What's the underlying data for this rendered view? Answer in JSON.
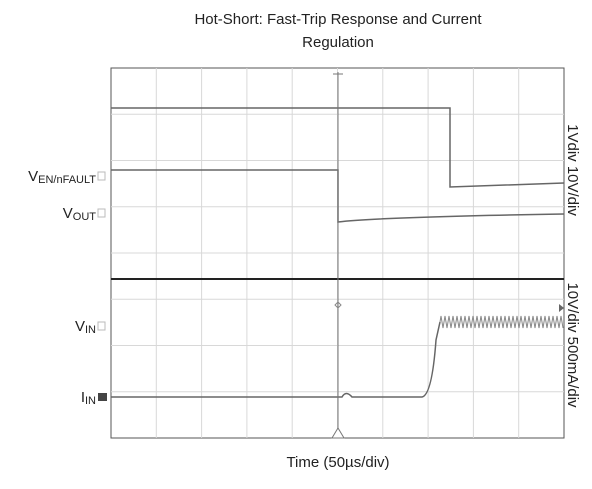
{
  "title_lines": [
    "Hot-Short: Fast-Trip Response and Current",
    "Regulation"
  ],
  "x_label": "Time (50µs/div)",
  "scale_labels": [
    "1Vdiv 10V/div",
    "10V/div 500mA/div"
  ],
  "channels": [
    {
      "symbol": "V",
      "subscript": "EN/nFAULT"
    },
    {
      "symbol": "V",
      "subscript": "OUT"
    },
    {
      "symbol": "V",
      "subscript": "IN"
    },
    {
      "symbol": "I",
      "subscript": "IN"
    }
  ]
}
